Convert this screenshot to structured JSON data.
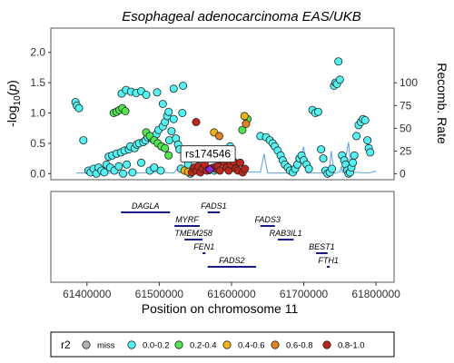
{
  "chart_data": {
    "type": "scatter",
    "title": "Esophageal adenocarcinoma EAS/UKB",
    "ylabel_left": "-log10(p)",
    "ylabel_right": "Recomb. Rate",
    "xlabel": "Position on chromosome 11",
    "xlim": [
      61350000,
      61825000
    ],
    "ylim": [
      -0.1,
      2.4
    ],
    "yticks": [
      0.0,
      0.5,
      1.0,
      1.5,
      2.0
    ],
    "ytick_labels": [
      "0.0",
      "0.5",
      "1.0",
      "1.5",
      "2.0"
    ],
    "right_axis_lim": [
      -6.4,
      160
    ],
    "right_ticks": [
      0,
      25,
      50,
      75,
      100
    ],
    "xticks": [
      61400000,
      61500000,
      61600000,
      61700000,
      61800000
    ],
    "xtick_labels": [
      "61400000",
      "61500000",
      "61600000",
      "61700000",
      "61800000"
    ],
    "lead_snp": {
      "label": "rs174546",
      "x": 61570000,
      "y": 0.07
    },
    "colors": {
      "miss": "#b3b3b3",
      "r2_0_0.2": "#4ff4f4",
      "r2_0.2_0.4": "#4fe84f",
      "r2_0.4_0.6": "#f1b50c",
      "r2_0.6_0.8": "#e8821f",
      "r2_0.8_1.0": "#c0251a",
      "lead": "#8a2be2",
      "recomb_line": "#5aa0f0",
      "gene_line": "#1a1a8c"
    },
    "series": [
      {
        "name": "0.0-0.2",
        "color_key": "r2_0_0.2",
        "points": [
          [
            61384000,
            1.18
          ],
          [
            61386000,
            1.12
          ],
          [
            61389000,
            1.08
          ],
          [
            61395000,
            0.55
          ],
          [
            61402000,
            0.05
          ],
          [
            61405000,
            0.02
          ],
          [
            61409000,
            0.08
          ],
          [
            61413000,
            0.0
          ],
          [
            61416000,
            0.1
          ],
          [
            61420000,
            0.05
          ],
          [
            61424000,
            0.02
          ],
          [
            61427000,
            0.15
          ],
          [
            61430000,
            0.28
          ],
          [
            61432000,
            0.1
          ],
          [
            61435000,
            0.3
          ],
          [
            61438000,
            0.05
          ],
          [
            61441000,
            0.33
          ],
          [
            61444000,
            0.12
          ],
          [
            61447000,
            0.35
          ],
          [
            61450000,
            0.0
          ],
          [
            61452000,
            0.38
          ],
          [
            61455000,
            0.15
          ],
          [
            61458000,
            0.4
          ],
          [
            61460000,
            0.45
          ],
          [
            61463000,
            0.02
          ],
          [
            61466000,
            0.42
          ],
          [
            61469000,
            0.48
          ],
          [
            61472000,
            0.5
          ],
          [
            61475000,
            0.18
          ],
          [
            61478000,
            0.52
          ],
          [
            61481000,
            0.55
          ],
          [
            61484000,
            0.6
          ],
          [
            61487000,
            0.05
          ],
          [
            61490000,
            0.58
          ],
          [
            61493000,
            0.1
          ],
          [
            61496000,
            0.65
          ],
          [
            61499000,
            0.72
          ],
          [
            61502000,
            0.05
          ],
          [
            61505000,
            0.78
          ],
          [
            61508000,
            0.85
          ],
          [
            61511000,
            0.95
          ],
          [
            61514000,
            0.55
          ],
          [
            61517000,
            0.7
          ],
          [
            61520000,
            0.9
          ],
          [
            61523000,
            0.58
          ],
          [
            61526000,
            0.48
          ],
          [
            61528000,
            0.4
          ],
          [
            61530000,
            0.08
          ],
          [
            61532000,
            1.0
          ],
          [
            61533000,
            1.45
          ],
          [
            61520000,
            1.4
          ],
          [
            61448000,
            1.32
          ],
          [
            61454000,
            1.38
          ],
          [
            61461000,
            1.35
          ],
          [
            61468000,
            1.33
          ],
          [
            61475000,
            1.36
          ],
          [
            61482000,
            1.3
          ],
          [
            61497000,
            1.34
          ],
          [
            61505000,
            1.15
          ],
          [
            61513000,
            1.02
          ],
          [
            61540000,
            0.15
          ],
          [
            61543000,
            0.0
          ],
          [
            61576000,
            0.05
          ],
          [
            61598000,
            0.45
          ],
          [
            61602000,
            0.12
          ],
          [
            61640000,
            0.62
          ],
          [
            61648000,
            0.6
          ],
          [
            61653000,
            0.55
          ],
          [
            61657000,
            0.5
          ],
          [
            61660000,
            0.45
          ],
          [
            61664000,
            0.38
          ],
          [
            61668000,
            0.3
          ],
          [
            61671000,
            0.22
          ],
          [
            61674000,
            0.15
          ],
          [
            61678000,
            0.1
          ],
          [
            61681000,
            0.05
          ],
          [
            61685000,
            0.02
          ],
          [
            61688000,
            0.08
          ],
          [
            61691000,
            0.15
          ],
          [
            61694000,
            0.25
          ],
          [
            61697000,
            0.3
          ],
          [
            61700000,
            0.22
          ],
          [
            61704000,
            0.15
          ],
          [
            61707000,
            0.08
          ],
          [
            61712000,
            1.05
          ],
          [
            61716000,
            1.0
          ],
          [
            61720000,
            1.02
          ],
          [
            61724000,
            0.4
          ],
          [
            61727000,
            0.25
          ],
          [
            61730000,
            0.05
          ],
          [
            61733000,
            0.0
          ],
          [
            61736000,
            0.02
          ],
          [
            61739000,
            0.08
          ],
          [
            61742000,
            1.45
          ],
          [
            61744000,
            1.5
          ],
          [
            61746000,
            1.48
          ],
          [
            61748000,
            1.85
          ],
          [
            61750000,
            1.55
          ],
          [
            61753000,
            0.3
          ],
          [
            61756000,
            0.22
          ],
          [
            61758000,
            0.15
          ],
          [
            61760000,
            0.05
          ],
          [
            61762000,
            0.0
          ],
          [
            61764000,
            0.02
          ],
          [
            61766000,
            0.1
          ],
          [
            61768000,
            0.18
          ],
          [
            61770000,
            0.3
          ],
          [
            61773000,
            0.62
          ],
          [
            61776000,
            0.8
          ],
          [
            61779000,
            0.85
          ],
          [
            61782000,
            0.9
          ],
          [
            61785000,
            0.88
          ],
          [
            61788000,
            0.55
          ],
          [
            61790000,
            0.42
          ],
          [
            61792000,
            0.35
          ]
        ]
      },
      {
        "name": "0.2-0.4",
        "color_key": "r2_0.2_0.4",
        "points": [
          [
            61437000,
            1.0
          ],
          [
            61441000,
            1.02
          ],
          [
            61445000,
            1.05
          ],
          [
            61449000,
            1.08
          ],
          [
            61453000,
            1.03
          ],
          [
            61482000,
            0.68
          ],
          [
            61487000,
            0.62
          ],
          [
            61493000,
            0.55
          ],
          [
            61498000,
            0.5
          ],
          [
            61503000,
            0.45
          ],
          [
            61508000,
            0.42
          ],
          [
            61513000,
            0.3
          ],
          [
            61615000,
            0.72
          ],
          [
            61622000,
            0.9
          ]
        ]
      },
      {
        "name": "0.4-0.6",
        "color_key": "r2_0.4_0.6",
        "points": [
          [
            61535000,
            0.05
          ],
          [
            61540000,
            0.03
          ],
          [
            61576000,
            0.68
          ],
          [
            61618000,
            0.95
          ]
        ]
      },
      {
        "name": "0.6-0.8",
        "color_key": "r2_0.6_0.8",
        "points": [
          [
            61583000,
            0.62
          ],
          [
            61620000,
            0.82
          ]
        ]
      },
      {
        "name": "0.8-1.0",
        "color_key": "r2_0.8_1.0",
        "points": [
          [
            61551000,
            0.85
          ],
          [
            61545000,
            0.02
          ],
          [
            61548000,
            0.1
          ],
          [
            61551500,
            0.05
          ],
          [
            61554000,
            0.12
          ],
          [
            61557000,
            0.02
          ],
          [
            61560000,
            0.08
          ],
          [
            61563000,
            0.15
          ],
          [
            61566000,
            0.05
          ],
          [
            61575000,
            0.1
          ],
          [
            61578000,
            0.08
          ],
          [
            61581000,
            0.12
          ],
          [
            61584000,
            0.05
          ],
          [
            61587000,
            0.22
          ],
          [
            61590000,
            0.18
          ],
          [
            61593000,
            0.1
          ],
          [
            61596000,
            0.05
          ],
          [
            61599000,
            0.15
          ],
          [
            61603000,
            0.2
          ],
          [
            61606000,
            0.08
          ],
          [
            61609000,
            0.05
          ],
          [
            61612000,
            0.18
          ],
          [
            61615500,
            0.02
          ],
          [
            61618500,
            0.08
          ]
        ]
      }
    ],
    "recomb_points": [
      [
        61385000,
        1
      ],
      [
        61420000,
        1
      ],
      [
        61470000,
        1
      ],
      [
        61500000,
        2
      ],
      [
        61520000,
        1
      ],
      [
        61530000,
        10
      ],
      [
        61533000,
        2
      ],
      [
        61555000,
        3
      ],
      [
        61570000,
        5
      ],
      [
        61580000,
        15
      ],
      [
        61585000,
        2
      ],
      [
        61600000,
        8
      ],
      [
        61612000,
        2
      ],
      [
        61640000,
        2
      ],
      [
        61645000,
        22
      ],
      [
        61650000,
        1
      ],
      [
        61690000,
        1
      ],
      [
        61700000,
        30
      ],
      [
        61704000,
        1
      ],
      [
        61735000,
        1
      ],
      [
        61738000,
        25
      ],
      [
        61742000,
        1
      ],
      [
        61750000,
        2
      ],
      [
        61752000,
        8
      ],
      [
        61754000,
        1
      ],
      [
        61762000,
        35
      ],
      [
        61765000,
        2
      ],
      [
        61790000,
        1
      ],
      [
        61800000,
        3
      ]
    ],
    "genes": [
      {
        "name": "DAGLA",
        "start": 61447000,
        "end": 61515000,
        "row": 0
      },
      {
        "name": "FADS1",
        "start": 61567000,
        "end": 61584000,
        "row": 0
      },
      {
        "name": "MYRF",
        "start": 61521000,
        "end": 61556000,
        "row": 1
      },
      {
        "name": "FADS3",
        "start": 61640000,
        "end": 61660000,
        "row": 1
      },
      {
        "name": "TMEM258",
        "start": 61535000,
        "end": 61560000,
        "row": 2
      },
      {
        "name": "RAB3IL1",
        "start": 61664000,
        "end": 61686000,
        "row": 2
      },
      {
        "name": "FEN1",
        "start": 61560000,
        "end": 61564000,
        "row": 3
      },
      {
        "name": "BEST1",
        "start": 61717000,
        "end": 61733000,
        "row": 3
      },
      {
        "name": "FADS2",
        "start": 61567000,
        "end": 61634000,
        "row": 4
      },
      {
        "name": "FTH1",
        "start": 61732000,
        "end": 61736000,
        "row": 4
      }
    ],
    "legend": {
      "title": "r2",
      "items": [
        {
          "label": "miss",
          "color_key": "miss"
        },
        {
          "label": "0.0-0.2",
          "color_key": "r2_0_0.2"
        },
        {
          "label": "0.2-0.4",
          "color_key": "r2_0.2_0.4"
        },
        {
          "label": "0.4-0.6",
          "color_key": "r2_0.4_0.6"
        },
        {
          "label": "0.6-0.8",
          "color_key": "r2_0.6_0.8"
        },
        {
          "label": "0.8-1.0",
          "color_key": "r2_0.8_1.0"
        }
      ],
      "placement": "bottom"
    }
  }
}
